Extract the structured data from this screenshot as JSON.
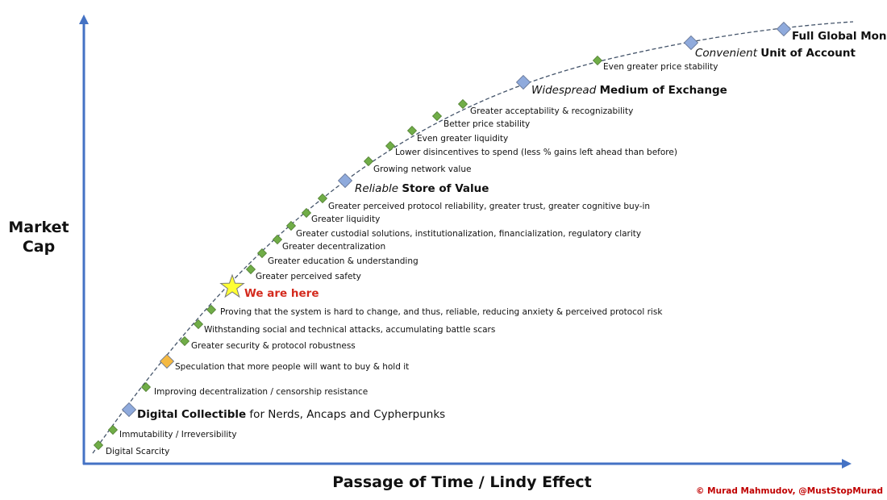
{
  "axes": {
    "y_label_line1": "Market",
    "y_label_line2": "Cap",
    "x_label": "Passage of Time / Lindy Effect",
    "color": "#4472c4"
  },
  "credit": "© Murad Mahmudov, @MustStopMurad",
  "colors": {
    "minor_marker": "#70ad47",
    "major_marker": "#8faadc",
    "speculation_marker": "#f4b942",
    "star": "#ffff33",
    "here_text": "#d42b1e",
    "credit_text": "#c00000"
  },
  "milestones": [
    {
      "kind": "minor",
      "parts": [
        {
          "t": "Digital Scarcity"
        }
      ]
    },
    {
      "kind": "minor",
      "parts": [
        {
          "t": "Immutability / Irreversibility"
        }
      ]
    },
    {
      "kind": "major",
      "parts": [
        {
          "t": "Digital Collectible",
          "style": "bold"
        },
        {
          "t": " for Nerds, Ancaps and Cypherpunks"
        }
      ]
    },
    {
      "kind": "minor",
      "parts": [
        {
          "t": "Improving decentralization / censorship resistance"
        }
      ]
    },
    {
      "kind": "speculation",
      "parts": [
        {
          "t": "Speculation that more people will want to buy & hold it"
        }
      ]
    },
    {
      "kind": "minor",
      "parts": [
        {
          "t": "Greater security & protocol robustness"
        }
      ]
    },
    {
      "kind": "minor",
      "parts": [
        {
          "t": "Withstanding social and technical attacks, accumulating battle scars"
        }
      ]
    },
    {
      "kind": "minor",
      "parts": [
        {
          "t": "Proving that the system is hard to change, and thus, reliable, reducing anxiety & perceived protocol risk"
        }
      ]
    },
    {
      "kind": "star",
      "parts": [
        {
          "t": "We are here",
          "style": "here"
        }
      ]
    },
    {
      "kind": "minor",
      "parts": [
        {
          "t": "Greater perceived safety"
        }
      ]
    },
    {
      "kind": "minor",
      "parts": [
        {
          "t": "Greater education & understanding"
        }
      ]
    },
    {
      "kind": "minor",
      "parts": [
        {
          "t": "Greater decentralization"
        }
      ]
    },
    {
      "kind": "minor",
      "parts": [
        {
          "t": "Greater custodial solutions, institutionalization, financialization, regulatory clarity"
        }
      ]
    },
    {
      "kind": "minor",
      "parts": [
        {
          "t": "Greater liquidity"
        }
      ]
    },
    {
      "kind": "minor",
      "parts": [
        {
          "t": "Greater perceived protocol reliability, greater trust, greater cognitive buy-in"
        }
      ]
    },
    {
      "kind": "major",
      "parts": [
        {
          "t": "Reliable ",
          "style": "italic"
        },
        {
          "t": "Store of Value",
          "style": "bold"
        }
      ]
    },
    {
      "kind": "minor",
      "parts": [
        {
          "t": "Growing network value"
        }
      ]
    },
    {
      "kind": "minor",
      "parts": [
        {
          "t": "Lower disincentives to spend (less % gains left ahead than before)"
        }
      ]
    },
    {
      "kind": "minor",
      "parts": [
        {
          "t": "Even greater liquidity"
        }
      ]
    },
    {
      "kind": "minor",
      "parts": [
        {
          "t": "Better price stability"
        }
      ]
    },
    {
      "kind": "minor",
      "parts": [
        {
          "t": "Greater acceptability & recognizability"
        }
      ]
    },
    {
      "kind": "major",
      "parts": [
        {
          "t": "Widespread ",
          "style": "italic"
        },
        {
          "t": "Medium of Exchange",
          "style": "bold"
        }
      ]
    },
    {
      "kind": "minor",
      "parts": [
        {
          "t": "Even greater price stability"
        }
      ]
    },
    {
      "kind": "major",
      "parts": [
        {
          "t": "Convenient ",
          "style": "italic"
        },
        {
          "t": "Unit of Account",
          "style": "bold"
        }
      ]
    },
    {
      "kind": "major",
      "parts": [
        {
          "t": "Full Global Money",
          "style": "bold"
        }
      ]
    }
  ]
}
